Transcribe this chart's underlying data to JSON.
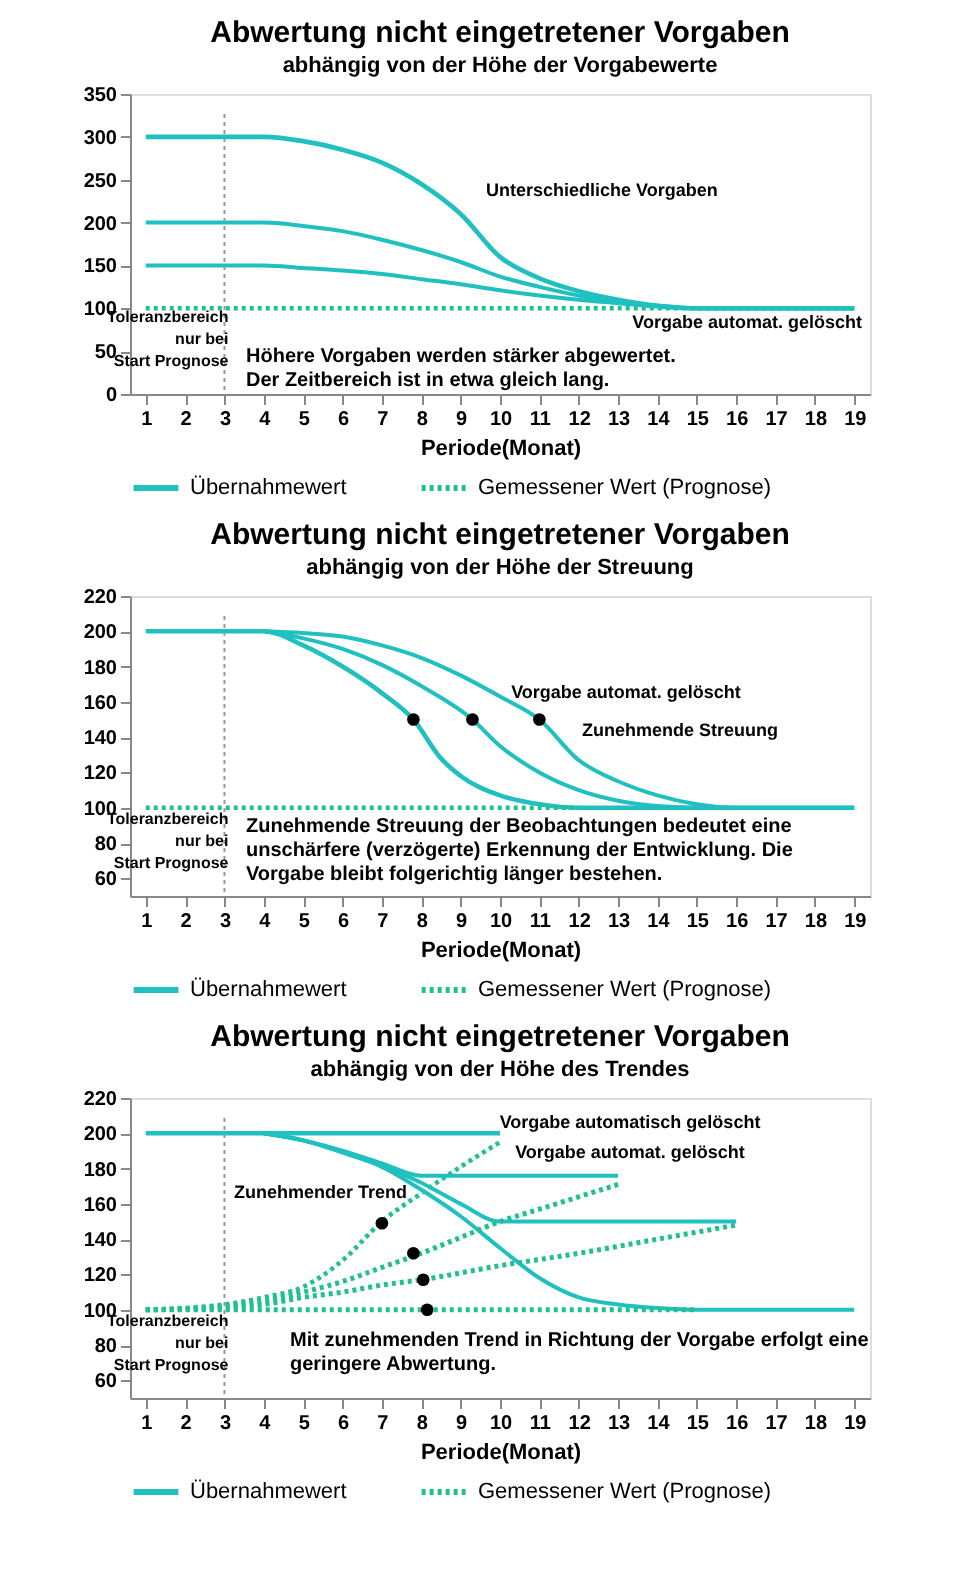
{
  "chart_data": [
    {
      "type": "line",
      "title": "Abwertung nicht eingetretener Vorgaben",
      "subtitle": "abhängig von der Höhe der Vorgabewerte",
      "xlabel": "Periode(Monat)",
      "xlim": [
        0.6,
        19.4
      ],
      "xticks": [
        1,
        2,
        3,
        4,
        5,
        6,
        7,
        8,
        9,
        10,
        11,
        12,
        13,
        14,
        15,
        16,
        17,
        18,
        19
      ],
      "ylim": [
        0,
        350
      ],
      "yticks": [
        0,
        50,
        100,
        150,
        200,
        250,
        300,
        350
      ],
      "legend": "bottom",
      "series": [
        {
          "name": "Übernahmewert",
          "color": "#20c0c0",
          "line_style": "solid",
          "x": [
            1,
            2,
            3,
            4,
            5,
            6,
            7,
            8,
            9,
            10,
            11,
            12,
            13,
            14,
            15,
            16,
            17,
            18,
            19
          ],
          "values": [
            300,
            300,
            300,
            300,
            295,
            285,
            270,
            245,
            210,
            160,
            135,
            120,
            110,
            103,
            100,
            100,
            100,
            100,
            100
          ]
        },
        {
          "color": "#20c0c0",
          "line_style": "solid",
          "x": [
            1,
            2,
            3,
            4,
            5,
            6,
            7,
            8,
            9,
            10,
            11,
            12,
            13,
            14,
            15,
            16,
            17,
            18,
            19
          ],
          "values": [
            200,
            200,
            200,
            200,
            196,
            190,
            180,
            168,
            154,
            137,
            125,
            115,
            108,
            103,
            100,
            100,
            100,
            100,
            100
          ]
        },
        {
          "color": "#20c0c0",
          "line_style": "solid",
          "x": [
            1,
            2,
            3,
            4,
            5,
            6,
            7,
            8,
            9,
            10,
            11,
            12,
            13,
            14,
            15,
            16,
            17,
            18,
            19
          ],
          "values": [
            150,
            150,
            150,
            150,
            147,
            144,
            140,
            134,
            128,
            121,
            115,
            110,
            106,
            102,
            100,
            100,
            100,
            100,
            100
          ]
        },
        {
          "name": "Gemessener Wert (Prognose)",
          "color": "#20c090",
          "line_style": "dotted",
          "x": [
            1,
            19
          ],
          "values": [
            100,
            100
          ]
        }
      ],
      "ref_lines": [
        {
          "axis": "x",
          "value": 3,
          "label": "Toleranzbereich\nnur bei\nStart Prognose",
          "color": "#999999",
          "line_style": "dotted"
        }
      ],
      "annotations": [
        "Höhere Vorgaben werden stärker abgewertet.\nDer Zeitbereich ist in etwa gleich lang.",
        "Unterschiedliche Vorgaben",
        "Vorgabe automat. gelöscht"
      ]
    },
    {
      "type": "line",
      "title": "Abwertung nicht eingetretener Vorgaben",
      "subtitle": "abhängig von der Höhe der Streuung",
      "xlabel": "Periode(Monat)",
      "xlim": [
        0.6,
        19.4
      ],
      "xticks": [
        1,
        2,
        3,
        4,
        5,
        6,
        7,
        8,
        9,
        10,
        11,
        12,
        13,
        14,
        15,
        16,
        17,
        18,
        19
      ],
      "ylim": [
        50,
        220
      ],
      "yticks": [
        60,
        80,
        100,
        120,
        140,
        160,
        180,
        200,
        220
      ],
      "legend": "bottom",
      "series": [
        {
          "name": "Übernahmewert",
          "color": "#20c0c0",
          "line_style": "solid",
          "x": [
            1,
            4,
            5,
            6,
            7,
            7.8,
            8.5,
            9,
            10,
            11,
            12,
            19
          ],
          "values": [
            200,
            200,
            192,
            180,
            165,
            150,
            128,
            118,
            107,
            102,
            100,
            100
          ]
        },
        {
          "color": "#20c0c0",
          "line_style": "solid",
          "x": [
            4,
            5,
            6,
            7,
            8,
            9.3,
            10,
            11,
            12,
            13,
            14,
            15
          ],
          "values": [
            200,
            196,
            190,
            181,
            169,
            150,
            135,
            120,
            110,
            104,
            101,
            100
          ]
        },
        {
          "color": "#20c0c0",
          "line_style": "solid",
          "x": [
            4,
            5,
            6,
            7,
            8,
            9,
            10,
            11,
            12,
            13,
            14,
            15,
            16,
            19
          ],
          "values": [
            200,
            199,
            197,
            192,
            185,
            175,
            163,
            150,
            127,
            115,
            107,
            102,
            100,
            100
          ]
        },
        {
          "name": "Gemessener Wert (Prognose)",
          "color": "#20c090",
          "line_style": "dotted",
          "x": [
            1,
            12
          ],
          "values": [
            100,
            100
          ]
        },
        {
          "type": "scatter",
          "color": "#000000",
          "marker": "circle",
          "x": [
            7.8,
            9.3,
            11
          ],
          "values": [
            150,
            150,
            150
          ]
        }
      ],
      "ref_lines": [
        {
          "axis": "x",
          "value": 3,
          "label": "Toleranzbereich\nnur bei\nStart Prognose",
          "color": "#999999",
          "line_style": "dotted"
        }
      ],
      "annotations": [
        "Zunehmende Streuung der Beobachtungen bedeutet eine\nunschärfere (verzögerte) Erkennung der Entwicklung. Die\nVorgabe bleibt folgerichtig länger bestehen.",
        "Vorgabe automat. gelöscht",
        "Zunehmende Streuung"
      ]
    },
    {
      "type": "line",
      "title": "Abwertung nicht eingetretener Vorgaben",
      "subtitle": "abhängig von der Höhe des Trendes",
      "xlabel": "Periode(Monat)",
      "xlim": [
        0.6,
        19.4
      ],
      "xticks": [
        1,
        2,
        3,
        4,
        5,
        6,
        7,
        8,
        9,
        10,
        11,
        12,
        13,
        14,
        15,
        16,
        17,
        18,
        19
      ],
      "ylim": [
        50,
        220
      ],
      "yticks": [
        60,
        80,
        100,
        120,
        140,
        160,
        180,
        200,
        220
      ],
      "legend": "bottom",
      "series": [
        {
          "name": "Übernahmewert",
          "color": "#20c0c0",
          "line_style": "solid",
          "x": [
            1,
            10
          ],
          "values": [
            200,
            200
          ]
        },
        {
          "color": "#20c0c0",
          "line_style": "solid",
          "x": [
            4,
            5,
            6,
            7,
            8,
            13
          ],
          "values": [
            200,
            196,
            190,
            183,
            176,
            176
          ]
        },
        {
          "color": "#20c0c0",
          "line_style": "solid",
          "x": [
            4,
            5,
            6,
            7,
            8,
            9,
            10,
            16
          ],
          "values": [
            200,
            196,
            190,
            182,
            172,
            160,
            150,
            150
          ]
        },
        {
          "color": "#20c0c0",
          "line_style": "solid",
          "x": [
            4,
            5,
            6,
            7,
            8,
            9,
            10,
            11,
            12,
            13,
            14,
            15,
            19
          ],
          "values": [
            200,
            196,
            189,
            181,
            168,
            153,
            135,
            118,
            107,
            103,
            101,
            100,
            100
          ]
        },
        {
          "name": "Gemessener Wert (Prognose)",
          "color": "#20c090",
          "line_style": "dotted",
          "x": [
            1,
            2,
            3,
            4,
            5,
            6,
            7,
            8,
            9,
            10
          ],
          "values": [
            100,
            101,
            103,
            107,
            113,
            128,
            150,
            166,
            181,
            195
          ]
        },
        {
          "color": "#20c090",
          "line_style": "dotted",
          "x": [
            1,
            3,
            4,
            5,
            6,
            7,
            8,
            9,
            10,
            11,
            12,
            13
          ],
          "values": [
            100,
            102,
            105,
            110,
            116,
            124,
            132,
            141,
            150,
            157,
            164,
            171
          ]
        },
        {
          "color": "#20c090",
          "line_style": "dotted",
          "x": [
            1,
            3,
            4,
            5,
            6,
            7,
            8,
            10,
            12,
            14,
            16
          ],
          "values": [
            100,
            101,
            103,
            107,
            110,
            114,
            117,
            125,
            132,
            140,
            148
          ]
        },
        {
          "color": "#20c090",
          "line_style": "dotted",
          "x": [
            1,
            15
          ],
          "values": [
            100,
            100
          ]
        },
        {
          "type": "scatter",
          "color": "#000000",
          "marker": "circle",
          "x": [
            7,
            7.8,
            8.05,
            8.15
          ],
          "values": [
            149,
            132,
            117,
            100
          ]
        }
      ],
      "ref_lines": [
        {
          "axis": "x",
          "value": 3,
          "label": "Toleranzbereich\nnur bei\nStart Prognose",
          "color": "#999999",
          "line_style": "dotted"
        }
      ],
      "annotations": [
        "Mit zunehmenden Trend in Richtung der Vorgabe erfolgt eine\ngeringere Abwertung.",
        "Vorgabe automatisch gelöscht",
        "Vorgabe automat. gelöscht",
        "Zunehmender Trend"
      ]
    }
  ]
}
